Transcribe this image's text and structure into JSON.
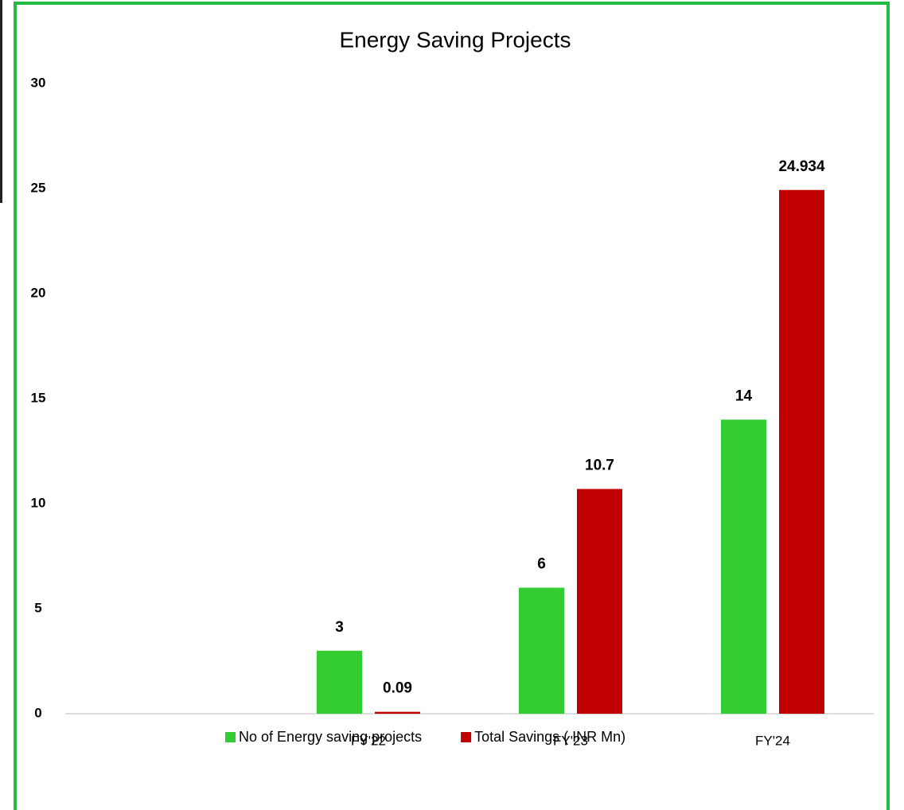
{
  "chart_data": {
    "type": "bar",
    "title": "Energy Saving Projects",
    "categories": [
      null,
      "FY'22",
      "FY'23",
      "FY'24"
    ],
    "series": [
      {
        "name": "No of Energy saving projects",
        "color": "#33cc33",
        "values": [
          null,
          3,
          6,
          14
        ]
      },
      {
        "name": "Total Savings ( INR Mn)",
        "color": "#c00000",
        "values": [
          null,
          0.09,
          10.7,
          24.934
        ]
      }
    ],
    "ylim": [
      0,
      30
    ],
    "yticks": [
      0,
      5,
      10,
      15,
      20,
      25,
      30
    ],
    "grid": false,
    "legend": "bottom"
  }
}
